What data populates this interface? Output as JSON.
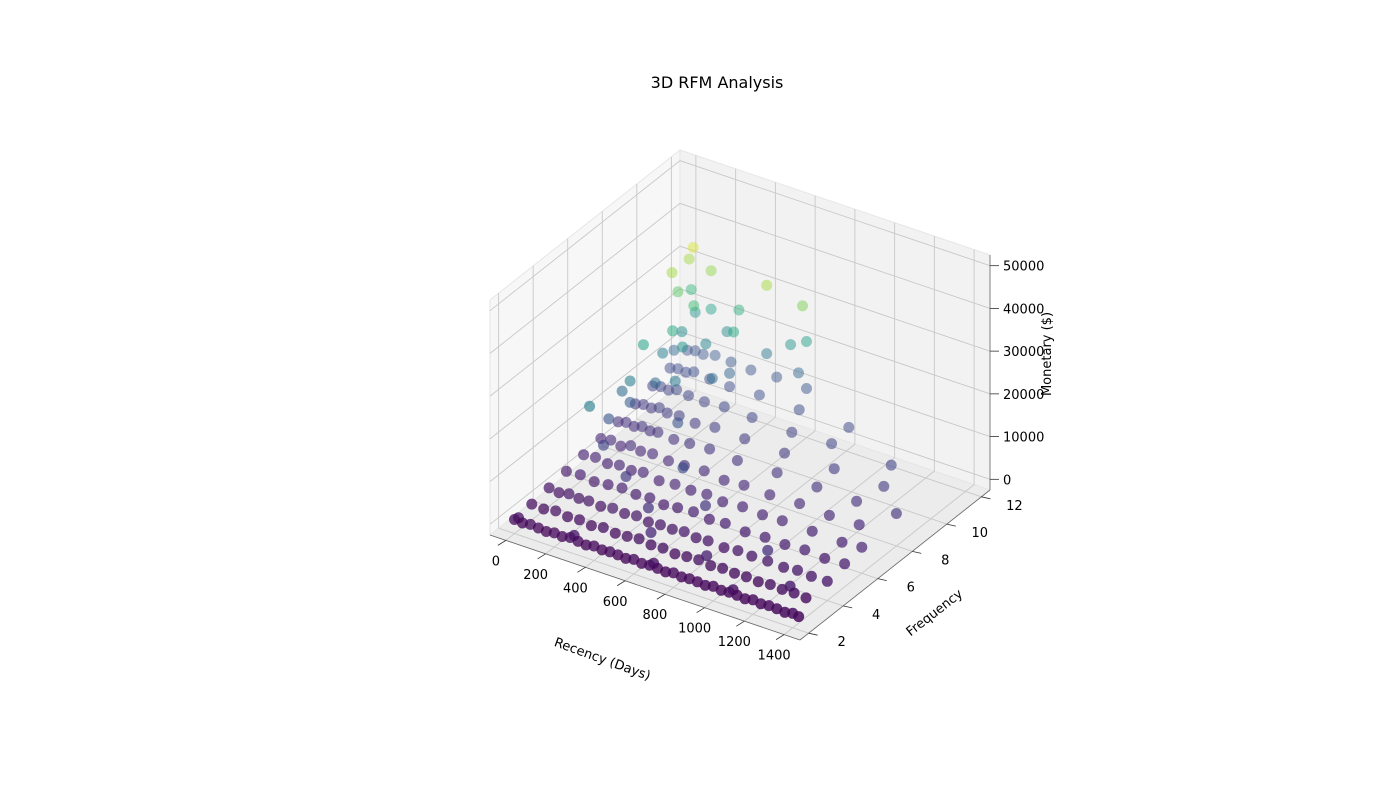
{
  "chart_data": {
    "type": "scatter",
    "projection": "3d",
    "title": "3D RFM Analysis",
    "xlabel": "Recency (Days)",
    "ylabel": "Frequency",
    "zlabel": "Monetary ($)",
    "xlim": [
      -80,
      1480
    ],
    "ylim": [
      1.5,
      12.5
    ],
    "zlim": [
      -2500,
      52500
    ],
    "xticks": [
      0,
      200,
      400,
      600,
      800,
      1000,
      1200,
      1400
    ],
    "yticks": [
      2,
      4,
      6,
      8,
      10,
      12
    ],
    "zticks": [
      0,
      10000,
      20000,
      30000,
      40000,
      50000
    ],
    "xtick_labels": [
      "0",
      "200",
      "400",
      "600",
      "800",
      "1000",
      "1200",
      "1400"
    ],
    "ytick_labels": [
      "2",
      "4",
      "6",
      "8",
      "10",
      "12"
    ],
    "ztick_labels": [
      "0",
      "10000",
      "20000",
      "30000",
      "40000",
      "50000"
    ],
    "grid": true,
    "colormap": "viridis",
    "color_by": "Monetary ($)",
    "color_range": [
      0,
      35000
    ],
    "points": [
      {
        "x": 0,
        "y": 2,
        "z": 800
      },
      {
        "x": 40,
        "y": 2,
        "z": 600
      },
      {
        "x": 80,
        "y": 2,
        "z": 900
      },
      {
        "x": 120,
        "y": 2,
        "z": 700
      },
      {
        "x": 160,
        "y": 2,
        "z": 500
      },
      {
        "x": 200,
        "y": 2,
        "z": 800
      },
      {
        "x": 240,
        "y": 2,
        "z": 600
      },
      {
        "x": 280,
        "y": 2,
        "z": 1000
      },
      {
        "x": 320,
        "y": 2,
        "z": 700
      },
      {
        "x": 360,
        "y": 2,
        "z": 500
      },
      {
        "x": 400,
        "y": 2,
        "z": 900
      },
      {
        "x": 440,
        "y": 2,
        "z": 600
      },
      {
        "x": 480,
        "y": 2,
        "z": 800
      },
      {
        "x": 520,
        "y": 2,
        "z": 700
      },
      {
        "x": 560,
        "y": 2,
        "z": 500
      },
      {
        "x": 600,
        "y": 2,
        "z": 900
      },
      {
        "x": 640,
        "y": 2,
        "z": 600
      },
      {
        "x": 680,
        "y": 2,
        "z": 800
      },
      {
        "x": 720,
        "y": 2,
        "z": 700
      },
      {
        "x": 760,
        "y": 2,
        "z": 500
      },
      {
        "x": 800,
        "y": 2,
        "z": 900
      },
      {
        "x": 840,
        "y": 2,
        "z": 600
      },
      {
        "x": 880,
        "y": 2,
        "z": 800
      },
      {
        "x": 920,
        "y": 2,
        "z": 700
      },
      {
        "x": 960,
        "y": 2,
        "z": 500
      },
      {
        "x": 1000,
        "y": 2,
        "z": 900
      },
      {
        "x": 1040,
        "y": 2,
        "z": 600
      },
      {
        "x": 1080,
        "y": 2,
        "z": 800
      },
      {
        "x": 1120,
        "y": 2,
        "z": 700
      },
      {
        "x": 1160,
        "y": 2,
        "z": 500
      },
      {
        "x": 1200,
        "y": 2,
        "z": 900
      },
      {
        "x": 1240,
        "y": 2,
        "z": 600
      },
      {
        "x": 1280,
        "y": 2,
        "z": 800
      },
      {
        "x": 1320,
        "y": 2,
        "z": 700
      },
      {
        "x": 1360,
        "y": 2,
        "z": 500
      },
      {
        "x": 1400,
        "y": 2,
        "z": 900
      },
      {
        "x": 1430,
        "y": 2,
        "z": 600
      },
      {
        "x": 20,
        "y": 2,
        "z": 1500
      },
      {
        "x": 300,
        "y": 2,
        "z": 1800
      },
      {
        "x": 700,
        "y": 2,
        "z": 1600
      },
      {
        "x": 1100,
        "y": 2,
        "z": 1700
      },
      {
        "x": 0,
        "y": 3,
        "z": 1200
      },
      {
        "x": 60,
        "y": 3,
        "z": 1000
      },
      {
        "x": 120,
        "y": 3,
        "z": 1500
      },
      {
        "x": 180,
        "y": 3,
        "z": 1100
      },
      {
        "x": 240,
        "y": 3,
        "z": 1300
      },
      {
        "x": 300,
        "y": 3,
        "z": 900
      },
      {
        "x": 360,
        "y": 3,
        "z": 1400
      },
      {
        "x": 420,
        "y": 3,
        "z": 1000
      },
      {
        "x": 480,
        "y": 3,
        "z": 1200
      },
      {
        "x": 540,
        "y": 3,
        "z": 1600
      },
      {
        "x": 600,
        "y": 3,
        "z": 1100
      },
      {
        "x": 660,
        "y": 3,
        "z": 1300
      },
      {
        "x": 720,
        "y": 3,
        "z": 900
      },
      {
        "x": 780,
        "y": 3,
        "z": 1200
      },
      {
        "x": 840,
        "y": 3,
        "z": 1400
      },
      {
        "x": 900,
        "y": 3,
        "z": 1000
      },
      {
        "x": 960,
        "y": 3,
        "z": 1300
      },
      {
        "x": 1020,
        "y": 3,
        "z": 1100
      },
      {
        "x": 1080,
        "y": 3,
        "z": 1200
      },
      {
        "x": 1140,
        "y": 3,
        "z": 1000
      },
      {
        "x": 1200,
        "y": 3,
        "z": 1300
      },
      {
        "x": 1260,
        "y": 3,
        "z": 1100
      },
      {
        "x": 1320,
        "y": 3,
        "z": 1200
      },
      {
        "x": 1380,
        "y": 3,
        "z": 1000
      },
      {
        "x": 600,
        "y": 3,
        "z": 4000
      },
      {
        "x": 880,
        "y": 3,
        "z": 3000
      },
      {
        "x": 1300,
        "y": 3,
        "z": 2500
      },
      {
        "x": 0,
        "y": 4,
        "z": 1800
      },
      {
        "x": 50,
        "y": 4,
        "z": 1500
      },
      {
        "x": 100,
        "y": 4,
        "z": 2000
      },
      {
        "x": 150,
        "y": 4,
        "z": 1700
      },
      {
        "x": 200,
        "y": 4,
        "z": 1900
      },
      {
        "x": 260,
        "y": 4,
        "z": 1600
      },
      {
        "x": 320,
        "y": 4,
        "z": 2100
      },
      {
        "x": 380,
        "y": 4,
        "z": 1800
      },
      {
        "x": 440,
        "y": 4,
        "z": 2200
      },
      {
        "x": 500,
        "y": 4,
        "z": 1700
      },
      {
        "x": 560,
        "y": 4,
        "z": 2000
      },
      {
        "x": 620,
        "y": 4,
        "z": 1900
      },
      {
        "x": 680,
        "y": 4,
        "z": 2300
      },
      {
        "x": 740,
        "y": 4,
        "z": 1800
      },
      {
        "x": 800,
        "y": 4,
        "z": 2000
      },
      {
        "x": 880,
        "y": 4,
        "z": 1700
      },
      {
        "x": 950,
        "y": 4,
        "z": 2100
      },
      {
        "x": 1020,
        "y": 4,
        "z": 1900
      },
      {
        "x": 1100,
        "y": 4,
        "z": 2000
      },
      {
        "x": 1180,
        "y": 4,
        "z": 1800
      },
      {
        "x": 1250,
        "y": 4,
        "z": 2200
      },
      {
        "x": 1320,
        "y": 4,
        "z": 1900
      },
      {
        "x": 1400,
        "y": 4,
        "z": 2000
      },
      {
        "x": 500,
        "y": 4,
        "z": 5000
      },
      {
        "x": 1100,
        "y": 4,
        "z": 4500
      },
      {
        "x": 0,
        "y": 5,
        "z": 2500
      },
      {
        "x": 70,
        "y": 5,
        "z": 2800
      },
      {
        "x": 140,
        "y": 5,
        "z": 2300
      },
      {
        "x": 210,
        "y": 5,
        "z": 2700
      },
      {
        "x": 280,
        "y": 5,
        "z": 3000
      },
      {
        "x": 350,
        "y": 5,
        "z": 2600
      },
      {
        "x": 420,
        "y": 5,
        "z": 2900
      },
      {
        "x": 490,
        "y": 5,
        "z": 2400
      },
      {
        "x": 560,
        "y": 5,
        "z": 2800
      },
      {
        "x": 640,
        "y": 5,
        "z": 3100
      },
      {
        "x": 720,
        "y": 5,
        "z": 2600
      },
      {
        "x": 800,
        "y": 5,
        "z": 2900
      },
      {
        "x": 900,
        "y": 5,
        "z": 2500
      },
      {
        "x": 1000,
        "y": 5,
        "z": 2800
      },
      {
        "x": 1100,
        "y": 5,
        "z": 2700
      },
      {
        "x": 1200,
        "y": 5,
        "z": 3000
      },
      {
        "x": 1300,
        "y": 5,
        "z": 2600
      },
      {
        "x": 1400,
        "y": 5,
        "z": 2900
      },
      {
        "x": 300,
        "y": 5,
        "z": 6000
      },
      {
        "x": 700,
        "y": 5,
        "z": 5500
      },
      {
        "x": 0,
        "y": 6,
        "z": 3200
      },
      {
        "x": 60,
        "y": 6,
        "z": 3500
      },
      {
        "x": 120,
        "y": 6,
        "z": 3000
      },
      {
        "x": 180,
        "y": 6,
        "z": 3600
      },
      {
        "x": 240,
        "y": 6,
        "z": 3300
      },
      {
        "x": 300,
        "y": 6,
        "z": 3800
      },
      {
        "x": 380,
        "y": 6,
        "z": 3100
      },
      {
        "x": 460,
        "y": 6,
        "z": 3500
      },
      {
        "x": 540,
        "y": 6,
        "z": 3400
      },
      {
        "x": 620,
        "y": 6,
        "z": 3700
      },
      {
        "x": 700,
        "y": 6,
        "z": 3200
      },
      {
        "x": 800,
        "y": 6,
        "z": 3600
      },
      {
        "x": 900,
        "y": 6,
        "z": 3300
      },
      {
        "x": 1000,
        "y": 6,
        "z": 3500
      },
      {
        "x": 1150,
        "y": 6,
        "z": 3400
      },
      {
        "x": 1300,
        "y": 6,
        "z": 3200
      },
      {
        "x": 1400,
        "y": 6,
        "z": 3600
      },
      {
        "x": 100,
        "y": 6,
        "z": 7000
      },
      {
        "x": 500,
        "y": 6,
        "z": 8000
      },
      {
        "x": 0,
        "y": 7,
        "z": 3800
      },
      {
        "x": 50,
        "y": 7,
        "z": 4200
      },
      {
        "x": 100,
        "y": 7,
        "z": 3600
      },
      {
        "x": 150,
        "y": 7,
        "z": 4500
      },
      {
        "x": 200,
        "y": 7,
        "z": 4000
      },
      {
        "x": 260,
        "y": 7,
        "z": 4300
      },
      {
        "x": 340,
        "y": 7,
        "z": 3900
      },
      {
        "x": 420,
        "y": 7,
        "z": 4100
      },
      {
        "x": 520,
        "y": 7,
        "z": 4400
      },
      {
        "x": 620,
        "y": 7,
        "z": 3800
      },
      {
        "x": 720,
        "y": 7,
        "z": 4200
      },
      {
        "x": 850,
        "y": 7,
        "z": 4000
      },
      {
        "x": 1000,
        "y": 7,
        "z": 4300
      },
      {
        "x": 1150,
        "y": 7,
        "z": 3900
      },
      {
        "x": 1300,
        "y": 7,
        "z": 4100
      },
      {
        "x": 40,
        "y": 7,
        "z": 9000
      },
      {
        "x": 0,
        "y": 8,
        "z": 4500
      },
      {
        "x": 40,
        "y": 8,
        "z": 5000
      },
      {
        "x": 80,
        "y": 8,
        "z": 4700
      },
      {
        "x": 120,
        "y": 8,
        "z": 5300
      },
      {
        "x": 160,
        "y": 8,
        "z": 4900
      },
      {
        "x": 200,
        "y": 8,
        "z": 5200
      },
      {
        "x": 280,
        "y": 8,
        "z": 4800
      },
      {
        "x": 360,
        "y": 8,
        "z": 5100
      },
      {
        "x": 460,
        "y": 8,
        "z": 5400
      },
      {
        "x": 600,
        "y": 8,
        "z": 4900
      },
      {
        "x": 800,
        "y": 8,
        "z": 5200
      },
      {
        "x": 1000,
        "y": 8,
        "z": 5000
      },
      {
        "x": 1200,
        "y": 8,
        "z": 4800
      },
      {
        "x": 1400,
        "y": 8,
        "z": 5100
      },
      {
        "x": 20,
        "y": 8,
        "z": 12000
      },
      {
        "x": 60,
        "y": 8,
        "z": 15000
      },
      {
        "x": 300,
        "y": 8,
        "z": 9000
      },
      {
        "x": 0,
        "y": 9,
        "z": 5500
      },
      {
        "x": 40,
        "y": 9,
        "z": 6000
      },
      {
        "x": 80,
        "y": 9,
        "z": 5800
      },
      {
        "x": 120,
        "y": 9,
        "z": 6500
      },
      {
        "x": 160,
        "y": 9,
        "z": 5900
      },
      {
        "x": 220,
        "y": 9,
        "z": 6200
      },
      {
        "x": 300,
        "y": 9,
        "z": 5700
      },
      {
        "x": 400,
        "y": 9,
        "z": 6300
      },
      {
        "x": 550,
        "y": 9,
        "z": 6000
      },
      {
        "x": 750,
        "y": 9,
        "z": 5800
      },
      {
        "x": 1000,
        "y": 9,
        "z": 6100
      },
      {
        "x": 1250,
        "y": 9,
        "z": 5900
      },
      {
        "x": 100,
        "y": 9,
        "z": 12000
      },
      {
        "x": 200,
        "y": 9,
        "z": 14000
      },
      {
        "x": 0,
        "y": 10,
        "z": 6500
      },
      {
        "x": 40,
        "y": 10,
        "z": 7000
      },
      {
        "x": 80,
        "y": 10,
        "z": 6800
      },
      {
        "x": 120,
        "y": 10,
        "z": 7500
      },
      {
        "x": 180,
        "y": 10,
        "z": 7100
      },
      {
        "x": 260,
        "y": 10,
        "z": 6900
      },
      {
        "x": 360,
        "y": 10,
        "z": 7300
      },
      {
        "x": 500,
        "y": 10,
        "z": 7000
      },
      {
        "x": 700,
        "y": 10,
        "z": 6700
      },
      {
        "x": 900,
        "y": 10,
        "z": 7200
      },
      {
        "x": 1200,
        "y": 10,
        "z": 6900
      },
      {
        "x": 50,
        "y": 10,
        "z": 15000
      },
      {
        "x": 150,
        "y": 10,
        "z": 18000
      },
      {
        "x": 300,
        "y": 10,
        "z": 13000
      },
      {
        "x": 100,
        "y": 10,
        "z": 21000
      },
      {
        "x": 0,
        "y": 11,
        "z": 7500
      },
      {
        "x": 40,
        "y": 11,
        "z": 8000
      },
      {
        "x": 80,
        "y": 11,
        "z": 7800
      },
      {
        "x": 120,
        "y": 11,
        "z": 8500
      },
      {
        "x": 200,
        "y": 11,
        "z": 8100
      },
      {
        "x": 300,
        "y": 11,
        "z": 7900
      },
      {
        "x": 450,
        "y": 11,
        "z": 8300
      },
      {
        "x": 650,
        "y": 11,
        "z": 8000
      },
      {
        "x": 900,
        "y": 11,
        "z": 7800
      },
      {
        "x": 60,
        "y": 11,
        "z": 17000
      },
      {
        "x": 180,
        "y": 11,
        "z": 16000
      },
      {
        "x": 120,
        "y": 11,
        "z": 24000
      },
      {
        "x": 40,
        "y": 11,
        "z": 26000
      },
      {
        "x": 300,
        "y": 11,
        "z": 11000
      },
      {
        "x": 20,
        "y": 11,
        "z": 12000
      },
      {
        "x": 0,
        "y": 12,
        "z": 8500
      },
      {
        "x": 40,
        "y": 12,
        "z": 9000
      },
      {
        "x": 80,
        "y": 12,
        "z": 8800
      },
      {
        "x": 140,
        "y": 12,
        "z": 9500
      },
      {
        "x": 220,
        "y": 12,
        "z": 9200
      },
      {
        "x": 320,
        "y": 12,
        "z": 8900
      },
      {
        "x": 450,
        "y": 12,
        "z": 9300
      },
      {
        "x": 600,
        "y": 12,
        "z": 9000
      },
      {
        "x": 40,
        "y": 12,
        "z": 18000
      },
      {
        "x": 120,
        "y": 12,
        "z": 20000
      },
      {
        "x": 200,
        "y": 12,
        "z": 16000
      },
      {
        "x": 20,
        "y": 12,
        "z": 23000
      },
      {
        "x": 260,
        "y": 12,
        "z": 22000
      },
      {
        "x": 400,
        "y": 12,
        "z": 14000
      },
      {
        "x": 520,
        "y": 12,
        "z": 18000
      },
      {
        "x": 560,
        "y": 12,
        "z": 12000
      },
      {
        "x": 600,
        "y": 12,
        "z": 20000
      },
      {
        "x": 30,
        "y": 12,
        "z": 33000
      },
      {
        "x": 10,
        "y": 12,
        "z": 30000
      },
      {
        "x": 120,
        "y": 12,
        "z": 29000
      },
      {
        "x": 400,
        "y": 12,
        "z": 30000
      },
      {
        "x": 580,
        "y": 12,
        "z": 28000
      },
      {
        "x": 320,
        "y": 11,
        "z": 21000
      },
      {
        "x": 30,
        "y": 6,
        "z": 15000
      },
      {
        "x": 60,
        "y": 8,
        "z": 10000
      },
      {
        "x": 40,
        "y": 9,
        "z": 20000
      },
      {
        "x": 10,
        "y": 11,
        "z": 30000
      }
    ]
  }
}
